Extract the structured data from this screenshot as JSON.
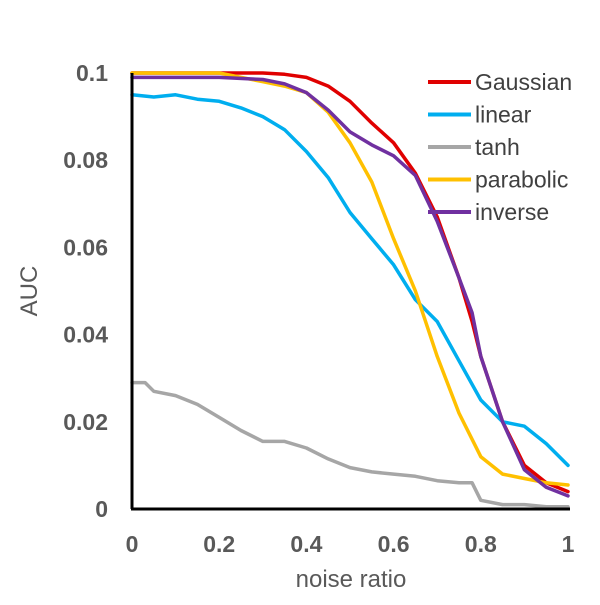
{
  "chart_data": {
    "type": "line",
    "title": "",
    "xlabel": "noise ratio",
    "ylabel": "AUC",
    "xlim": [
      0,
      1
    ],
    "ylim": [
      0,
      0.1
    ],
    "xticks": [
      "0",
      "0.2",
      "0.4",
      "0.6",
      "0.8",
      "1"
    ],
    "yticks": [
      "0",
      "0.02",
      "0.04",
      "0.06",
      "0.08",
      "0.1"
    ],
    "grid": false,
    "legend_position": "top-right",
    "series": [
      {
        "name": "Gaussian",
        "color": "#e00000",
        "points": [
          [
            0,
            0.1
          ],
          [
            0.1,
            0.1
          ],
          [
            0.2,
            0.1
          ],
          [
            0.3,
            0.1
          ],
          [
            0.35,
            0.0997
          ],
          [
            0.4,
            0.099
          ],
          [
            0.45,
            0.097
          ],
          [
            0.5,
            0.0935
          ],
          [
            0.55,
            0.0885
          ],
          [
            0.6,
            0.084
          ],
          [
            0.65,
            0.077
          ],
          [
            0.7,
            0.067
          ],
          [
            0.75,
            0.053
          ],
          [
            0.78,
            0.043
          ],
          [
            0.8,
            0.035
          ],
          [
            0.85,
            0.02
          ],
          [
            0.9,
            0.01
          ],
          [
            0.95,
            0.006
          ],
          [
            1,
            0.004
          ]
        ]
      },
      {
        "name": "linear",
        "color": "#00aeef",
        "points": [
          [
            0,
            0.095
          ],
          [
            0.05,
            0.0945
          ],
          [
            0.1,
            0.095
          ],
          [
            0.15,
            0.094
          ],
          [
            0.2,
            0.0935
          ],
          [
            0.25,
            0.092
          ],
          [
            0.3,
            0.09
          ],
          [
            0.35,
            0.087
          ],
          [
            0.4,
            0.082
          ],
          [
            0.45,
            0.076
          ],
          [
            0.5,
            0.068
          ],
          [
            0.55,
            0.062
          ],
          [
            0.6,
            0.056
          ],
          [
            0.65,
            0.048
          ],
          [
            0.7,
            0.043
          ],
          [
            0.75,
            0.034
          ],
          [
            0.8,
            0.025
          ],
          [
            0.85,
            0.02
          ],
          [
            0.9,
            0.019
          ],
          [
            0.95,
            0.015
          ],
          [
            1,
            0.01
          ]
        ]
      },
      {
        "name": "tanh",
        "color": "#a6a6a6",
        "points": [
          [
            0,
            0.029
          ],
          [
            0.03,
            0.029
          ],
          [
            0.05,
            0.027
          ],
          [
            0.1,
            0.026
          ],
          [
            0.15,
            0.024
          ],
          [
            0.2,
            0.021
          ],
          [
            0.25,
            0.018
          ],
          [
            0.3,
            0.0155
          ],
          [
            0.35,
            0.0155
          ],
          [
            0.4,
            0.014
          ],
          [
            0.45,
            0.0115
          ],
          [
            0.5,
            0.0095
          ],
          [
            0.55,
            0.0085
          ],
          [
            0.6,
            0.008
          ],
          [
            0.65,
            0.0075
          ],
          [
            0.7,
            0.0065
          ],
          [
            0.75,
            0.006
          ],
          [
            0.78,
            0.006
          ],
          [
            0.8,
            0.002
          ],
          [
            0.85,
            0.001
          ],
          [
            0.9,
            0.001
          ],
          [
            0.95,
            0.0005
          ],
          [
            1,
            0.0005
          ]
        ]
      },
      {
        "name": "parabolic",
        "color": "#ffc000",
        "points": [
          [
            0,
            0.1
          ],
          [
            0.1,
            0.1
          ],
          [
            0.2,
            0.1
          ],
          [
            0.3,
            0.098
          ],
          [
            0.35,
            0.097
          ],
          [
            0.4,
            0.0955
          ],
          [
            0.45,
            0.091
          ],
          [
            0.5,
            0.084
          ],
          [
            0.55,
            0.075
          ],
          [
            0.6,
            0.062
          ],
          [
            0.65,
            0.05
          ],
          [
            0.7,
            0.035
          ],
          [
            0.75,
            0.022
          ],
          [
            0.8,
            0.012
          ],
          [
            0.85,
            0.008
          ],
          [
            0.9,
            0.007
          ],
          [
            0.95,
            0.006
          ],
          [
            1,
            0.0055
          ]
        ]
      },
      {
        "name": "inverse",
        "color": "#7030a0",
        "points": [
          [
            0,
            0.099
          ],
          [
            0.1,
            0.099
          ],
          [
            0.2,
            0.099
          ],
          [
            0.3,
            0.0985
          ],
          [
            0.35,
            0.0975
          ],
          [
            0.4,
            0.0955
          ],
          [
            0.45,
            0.0915
          ],
          [
            0.5,
            0.0865
          ],
          [
            0.55,
            0.0835
          ],
          [
            0.6,
            0.081
          ],
          [
            0.65,
            0.0765
          ],
          [
            0.7,
            0.066
          ],
          [
            0.75,
            0.053
          ],
          [
            0.78,
            0.045
          ],
          [
            0.8,
            0.035
          ],
          [
            0.85,
            0.02
          ],
          [
            0.9,
            0.009
          ],
          [
            0.95,
            0.005
          ],
          [
            1,
            0.003
          ]
        ]
      }
    ]
  }
}
